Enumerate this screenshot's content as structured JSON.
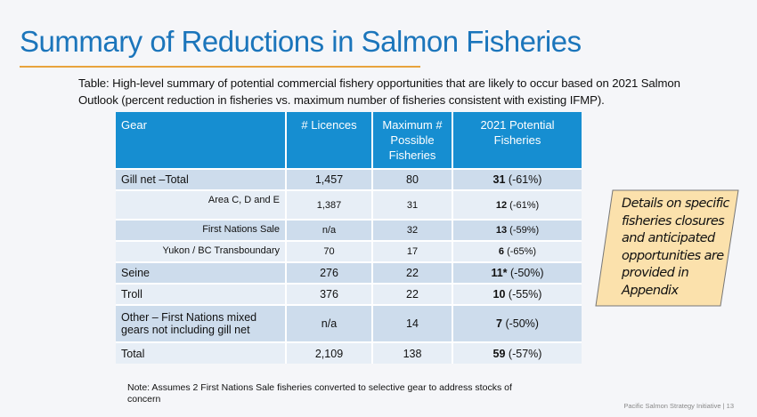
{
  "title": "Summary of Reductions in Salmon Fisheries",
  "caption": "Table:  High-level summary of potential commercial fishery opportunities that are likely to occur based on 2021 Salmon Outlook (percent reduction in fisheries vs. maximum number of fisheries consistent with existing IFMP).",
  "table": {
    "headers": [
      "Gear",
      "# Licences",
      "Maximum # Possible Fisheries",
      "2021 Potential Fisheries"
    ],
    "rows": [
      {
        "gear": "Gill net –Total",
        "licences": "1,457",
        "max": "80",
        "potential": "31",
        "pct": " (-61%)"
      },
      {
        "gear": "Area C, D and E",
        "licences": "1,387",
        "max": "31",
        "potential": "12",
        "pct": " (-61%)"
      },
      {
        "gear": "First Nations Sale",
        "licences": "n/a",
        "max": "32",
        "potential": "13",
        "pct": " (-59%)"
      },
      {
        "gear": "Yukon / BC Transboundary",
        "licences": "70",
        "max": "17",
        "potential": "6",
        "pct": " (-65%)"
      },
      {
        "gear": "Seine",
        "licences": "276",
        "max": "22",
        "potential": "11*",
        "pct": " (-50%)"
      },
      {
        "gear": "Troll",
        "licences": "376",
        "max": "22",
        "potential": "10",
        "pct": " (-55%)"
      },
      {
        "gear": "Other – First Nations mixed gears not including gill net",
        "licences": "n/a",
        "max": "14",
        "potential": "7",
        "pct": " (-50%)"
      },
      {
        "gear": "Total",
        "licences": "2,109",
        "max": "138",
        "potential": "59",
        "pct": " (-57%)"
      }
    ]
  },
  "callout": "Details on specific fisheries closures and anticipated opportunities are provided in Appendix",
  "note": "Note: Assumes 2 First Nations Sale fisheries converted to selective gear to address stocks of concern",
  "footer": "Pacific Salmon Strategy Initiative | 13",
  "colors": {
    "title": "#1b75bb",
    "header": "#168ed1",
    "accent_rule": "#e8a33c",
    "callout_fill": "#fbe1ac"
  }
}
